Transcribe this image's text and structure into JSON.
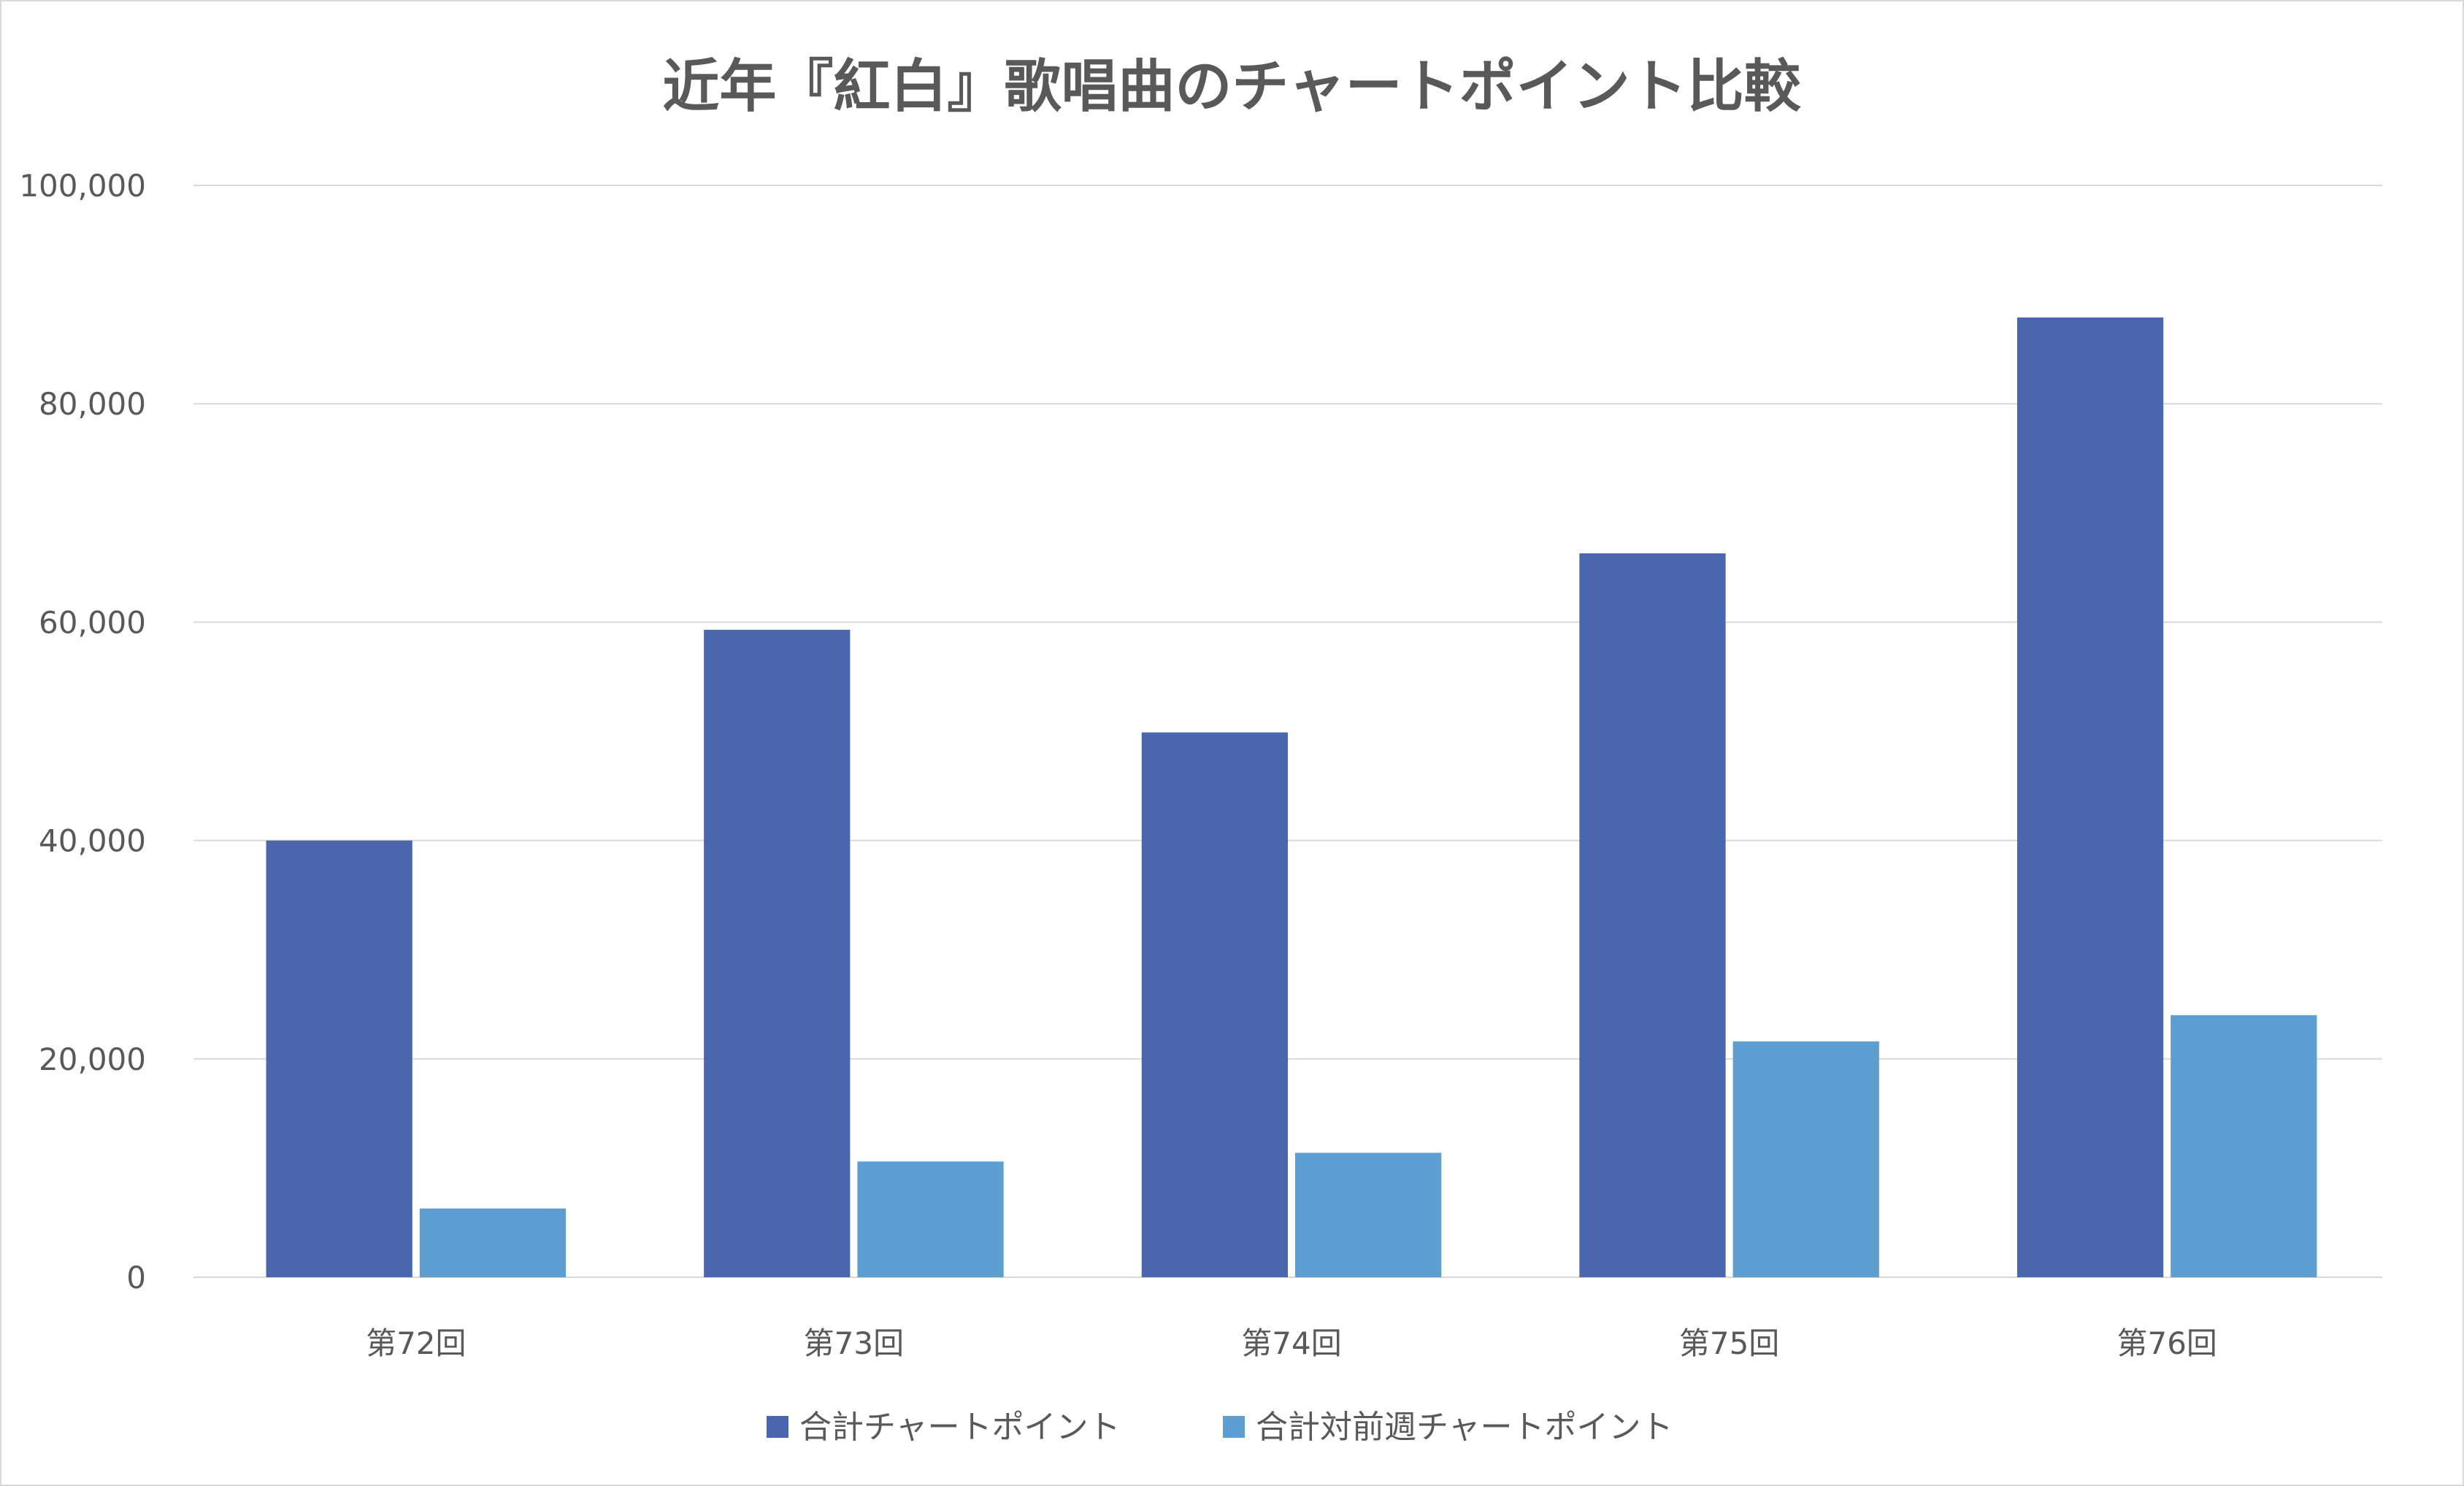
{
  "chart_data": {
    "type": "bar",
    "title": "近年『紅白』歌唱曲のチャートポイント比較",
    "xlabel": "",
    "ylabel": "",
    "categories": [
      "第72回",
      "第73回",
      "第74回",
      "第75回",
      "第76回"
    ],
    "series": [
      {
        "name": "合計チャートポイント",
        "color": "#4a66ae",
        "values": [
          40000,
          59300,
          49900,
          66300,
          87900
        ]
      },
      {
        "name": "合計対前週チャートポイント",
        "color": "#5f9ed1",
        "values": [
          6300,
          10600,
          11400,
          21600,
          24000
        ]
      }
    ],
    "ylim": [
      0,
      100000
    ],
    "yticks": [
      "0",
      "20,000",
      "40,000",
      "60,000",
      "80,000",
      "100,000"
    ],
    "ytick_values": [
      0,
      20000,
      40000,
      60000,
      80000,
      100000
    ],
    "grid": true,
    "legend_position": "bottom"
  }
}
